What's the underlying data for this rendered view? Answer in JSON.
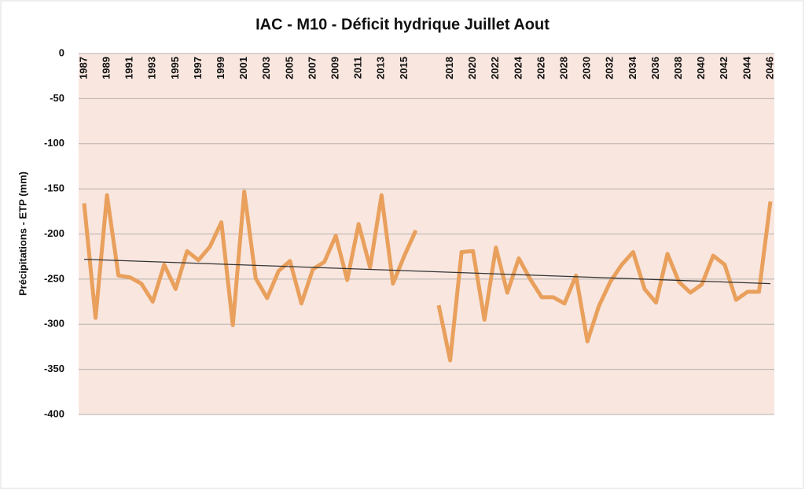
{
  "chart_data": {
    "type": "line",
    "title": "IAC - M10 - Déficit hydrique Juillet Aout",
    "y_label": "Précipitations - ETP (mm)",
    "categories": [
      "1987",
      null,
      "1989",
      null,
      "1991",
      null,
      "1993",
      null,
      "1995",
      null,
      "1997",
      null,
      "1999",
      null,
      "2001",
      null,
      "2003",
      null,
      "2005",
      null,
      "2007",
      null,
      "2009",
      null,
      "2011",
      null,
      "2013",
      null,
      "2015",
      null,
      null,
      null,
      "2018",
      null,
      "2020",
      null,
      "2022",
      null,
      "2024",
      null,
      "2026",
      null,
      "2028",
      null,
      "2030",
      null,
      "2032",
      null,
      "2034",
      null,
      "2036",
      null,
      "2038",
      null,
      "2040",
      null,
      "2042",
      null,
      "2044",
      null,
      "2046"
    ],
    "series": [
      {
        "color": "#e9a05c",
        "values": [
          -166,
          -293,
          -157,
          -246,
          -248,
          -255,
          -275,
          -234,
          -261,
          -219,
          -229,
          -214,
          -187,
          -301,
          -153,
          -249,
          -271,
          -241,
          -230,
          -277,
          -239,
          -231,
          -202,
          -251,
          -189,
          -237,
          -157,
          -255,
          -224,
          -196,
          null,
          -279,
          -340,
          -220,
          -219,
          -295,
          -215,
          -265,
          -227,
          -250,
          -270,
          -270,
          -277,
          -246,
          -319,
          -280,
          -253,
          -234,
          -220,
          -261,
          -276,
          -222,
          -253,
          -265,
          -256,
          -224,
          -234,
          -273,
          -264,
          -264,
          -164
        ]
      }
    ],
    "trendline": {
      "color": "#333333",
      "values": [
        -228,
        -255
      ]
    },
    "ylim": [
      -400,
      0
    ],
    "yticks": [
      0,
      -50,
      -100,
      -150,
      -200,
      -250,
      -300,
      -350,
      -400
    ],
    "grid": true
  }
}
